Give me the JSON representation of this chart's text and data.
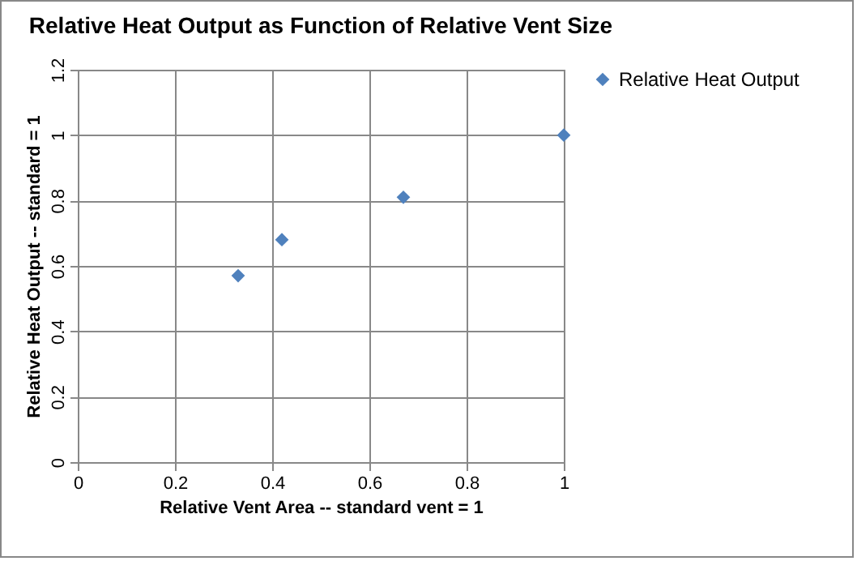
{
  "chart_data": {
    "type": "scatter",
    "title": "Relative Heat Output as Function of Relative Vent Size",
    "xlabel": "Relative Vent Area -- standard vent = 1",
    "ylabel": "Relative Heat Output -- standard = 1",
    "x": [
      0.33,
      0.42,
      0.67,
      1
    ],
    "series": [
      {
        "name": "Relative Heat Output",
        "color": "#4f81bd",
        "values": [
          0.57,
          0.68,
          0.81,
          1
        ]
      }
    ],
    "xlim": [
      0,
      1
    ],
    "xticks": [
      0,
      0.2,
      0.4,
      0.6,
      0.8,
      1
    ],
    "ylim": [
      0,
      1.2
    ],
    "yticks": [
      0,
      0.2,
      0.4,
      0.6,
      0.8,
      1,
      1.2
    ],
    "grid": true,
    "legend": "right",
    "marker": "diamond"
  }
}
